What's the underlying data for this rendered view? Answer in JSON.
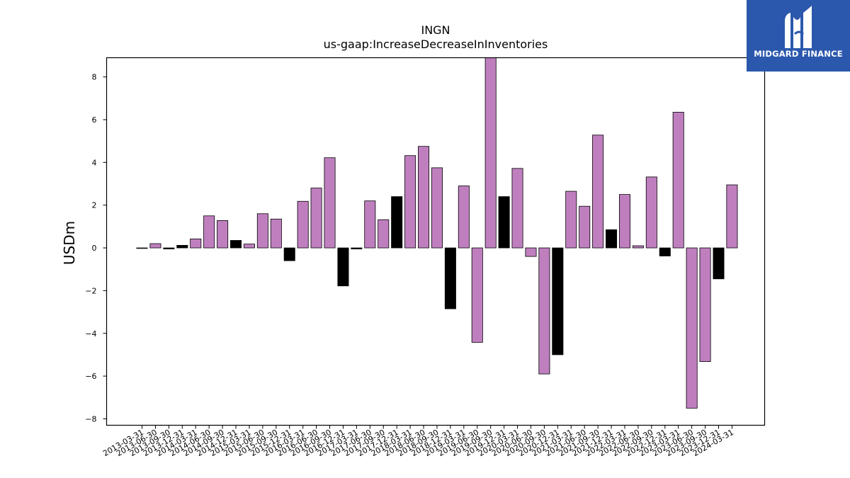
{
  "brand": {
    "name": "MIDGARD FINANCE",
    "color": "#2b58ac",
    "icon": "midgard-logo-mark"
  },
  "colors": {
    "positive_bar": "#bf7fbf",
    "highlight_bar": "#000000",
    "edge": "#000000"
  },
  "chart_data": {
    "type": "bar",
    "title": "INGN",
    "subtitle": "us-gaap:IncreaseDecreaseInInventories",
    "xlabel": "",
    "ylabel": "USDm",
    "ylim": [
      -8.3,
      8.9
    ],
    "yticks": [
      -8,
      -6,
      -4,
      -2,
      0,
      2,
      4,
      6,
      8
    ],
    "ytick_labels": [
      "−8",
      "−6",
      "−4",
      "−2",
      "0",
      "2",
      "4",
      "6",
      "8"
    ],
    "grid": false,
    "legend": "none",
    "categories": [
      "2013-03-31",
      "2013-06-30",
      "2013-09-30",
      "2013-12-31",
      "2014-03-31",
      "2014-06-30",
      "2014-09-30",
      "2014-12-31",
      "2015-03-31",
      "2015-06-30",
      "2015-09-30",
      "2015-12-31",
      "2016-03-31",
      "2016-06-30",
      "2016-09-30",
      "2016-12-31",
      "2017-03-31",
      "2017-06-30",
      "2017-09-30",
      "2017-12-31",
      "2018-03-31",
      "2018-06-30",
      "2018-09-30",
      "2018-12-31",
      "2019-03-31",
      "2019-06-30",
      "2019-09-30",
      "2019-12-31",
      "2020-03-31",
      "2020-06-30",
      "2020-09-30",
      "2020-12-31",
      "2021-03-31",
      "2021-06-30",
      "2021-09-30",
      "2021-12-31",
      "2022-03-31",
      "2022-06-30",
      "2022-09-30",
      "2022-12-31",
      "2023-03-31",
      "2023-06-30",
      "2023-09-30",
      "2023-12-31",
      "2024-03-31"
    ],
    "values": [
      -0.02,
      0.2,
      -0.05,
      0.12,
      0.42,
      1.5,
      1.28,
      0.35,
      0.18,
      1.6,
      1.35,
      -0.6,
      2.18,
      2.8,
      4.22,
      -1.78,
      -0.05,
      2.2,
      1.32,
      2.4,
      4.32,
      4.75,
      3.75,
      -2.85,
      2.9,
      -4.42,
      8.9,
      2.4,
      3.72,
      -0.4,
      -5.9,
      -5.0,
      2.65,
      1.95,
      5.28,
      0.85,
      2.5,
      0.1,
      3.32,
      -0.38,
      6.35,
      -7.5,
      -5.32,
      -1.45,
      2.95
    ],
    "highlight": [
      true,
      false,
      true,
      true,
      false,
      false,
      false,
      true,
      false,
      false,
      false,
      true,
      false,
      false,
      false,
      true,
      true,
      false,
      false,
      true,
      false,
      false,
      false,
      true,
      false,
      false,
      false,
      true,
      false,
      false,
      false,
      true,
      false,
      false,
      false,
      true,
      false,
      false,
      false,
      true,
      false,
      false,
      false,
      true,
      false
    ]
  }
}
